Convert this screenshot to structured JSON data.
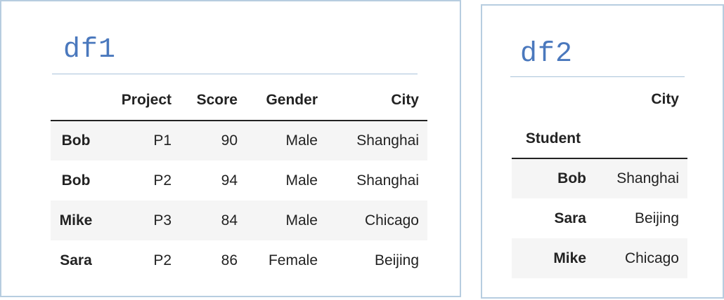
{
  "df1": {
    "title": "df1",
    "columns": [
      "",
      "Project",
      "Score",
      "Gender",
      "City"
    ],
    "rows": [
      {
        "index": "Bob",
        "cells": [
          "P1",
          "90",
          "Male",
          "Shanghai"
        ]
      },
      {
        "index": "Bob",
        "cells": [
          "P2",
          "94",
          "Male",
          "Shanghai"
        ]
      },
      {
        "index": "Mike",
        "cells": [
          "P3",
          "84",
          "Male",
          "Chicago"
        ]
      },
      {
        "index": "Sara",
        "cells": [
          "P2",
          "86",
          "Female",
          "Beijing"
        ]
      }
    ]
  },
  "df2": {
    "title": "df2",
    "columns": [
      "",
      "City"
    ],
    "index_name": "Student",
    "rows": [
      {
        "index": "Bob",
        "cells": [
          "Shanghai"
        ]
      },
      {
        "index": "Sara",
        "cells": [
          "Beijing"
        ]
      },
      {
        "index": "Mike",
        "cells": [
          "Chicago"
        ]
      }
    ]
  },
  "colors": {
    "title": "#4a78bd",
    "panel_border": "#b7cde0",
    "row_stripe": "#f5f5f5"
  }
}
